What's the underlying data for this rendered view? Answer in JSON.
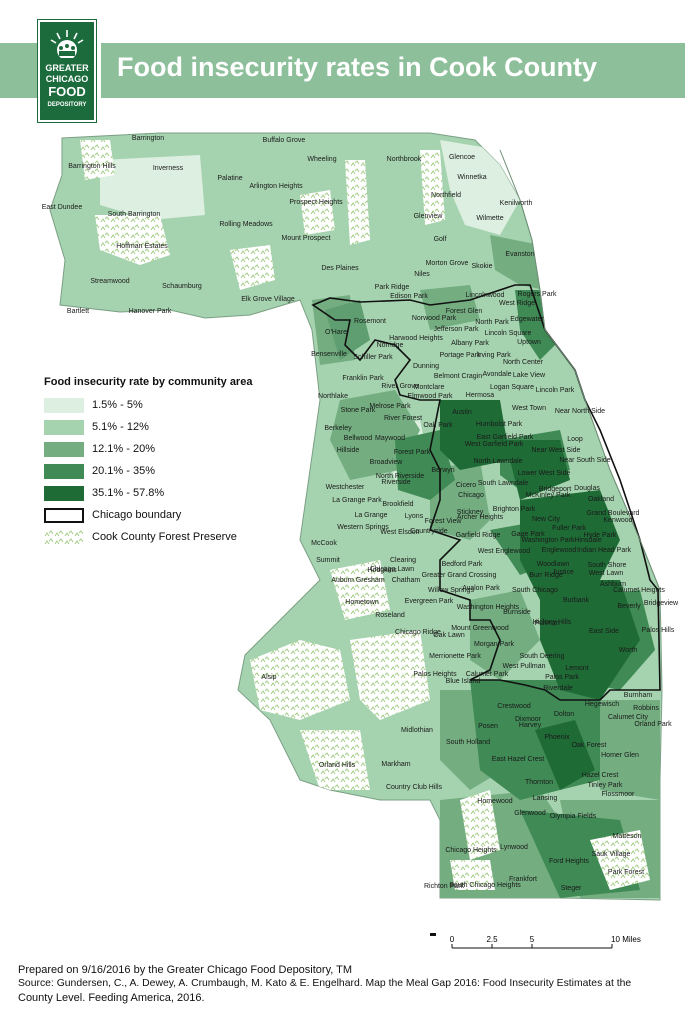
{
  "title": "Food insecurity rates in Cook County",
  "logo": {
    "line1": "GREATER",
    "line2": "CHICAGO",
    "line3": "FOOD",
    "line4": "DEPOSITORY",
    "icon": "sun-figures-logo-icon"
  },
  "legend": {
    "title": "Food insecurity rate by community area",
    "classes": [
      {
        "label": "1.5% - 5%",
        "color": "#dcefe0"
      },
      {
        "label": "5.1% - 12%",
        "color": "#a6d3af"
      },
      {
        "label": "12.1% - 20%",
        "color": "#73ad80"
      },
      {
        "label": "20.1% - 35%",
        "color": "#3f8a55"
      },
      {
        "label": "35.1% - 57.8%",
        "color": "#1f6b36"
      }
    ],
    "boundary_label": "Chicago boundary",
    "forest_label": "Cook County Forest Preserve"
  },
  "places": [
    "Barrington",
    "Buffalo Grove",
    "Wheeling",
    "Northbrook",
    "Glencoe",
    "Winnetka",
    "Barrington Hills",
    "Inverness",
    "Palatine",
    "Arlington Heights",
    "Prospect Heights",
    "Northfield",
    "Kenilworth",
    "Wilmette",
    "East Dundee",
    "South Barrington",
    "Rolling Meadows",
    "Glenview",
    "Golf",
    "Mount Prospect",
    "Hoffman Estates",
    "Morton Grove",
    "Skokie",
    "Evanston",
    "Des Plaines",
    "Niles",
    "Streamwood",
    "Schaumburg",
    "Park Ridge",
    "Lincolnwood",
    "Rogers Park",
    "West Ridge",
    "Bartlett",
    "Hanover Park",
    "Elk Grove Village",
    "Edison Park",
    "Forest Glen",
    "Norwood Park",
    "North Park",
    "Edgewater",
    "O'Hare",
    "Rosemont",
    "Jefferson Park",
    "Lincoln Square",
    "Harwood Heights",
    "Norridge",
    "Albany Park",
    "Uptown",
    "Bensenville",
    "Schiller Park",
    "Portage Park",
    "Irving Park",
    "North Center",
    "Dunning",
    "Franklin Park",
    "Belmont Cragin",
    "Avondale",
    "Lake View",
    "Montclare",
    "Logan Square",
    "Lincoln Park",
    "River Grove",
    "Northlake",
    "Elmwood Park",
    "Hermosa",
    "Stone Park",
    "Melrose Park",
    "West Town",
    "Near North Side",
    "River Forest",
    "Oak Park",
    "Austin",
    "Berkeley",
    "Humboldt Park",
    "Bellwood",
    "Maywood",
    "East Garfield Park",
    "West Garfield Park",
    "Near West Side",
    "Loop",
    "Hillside",
    "Forest Park",
    "Broadview",
    "Berwyn",
    "North Lawndale",
    "Lower West Side",
    "Near South Side",
    "Westchester",
    "North Riverside",
    "Riverside",
    "Cicero",
    "South Lawndale",
    "Bridgeport",
    "Douglas",
    "La Grange Park",
    "Brookfield",
    "Chicago",
    "McKinley Park",
    "Oakland",
    "Brighton Park",
    "Grand Boulevard",
    "Kenwood",
    "La Grange",
    "Lyons",
    "Stickney",
    "Forest View",
    "Archer Heights",
    "New City",
    "Fuller Park",
    "Hyde Park",
    "Western Springs",
    "Garfield Ridge",
    "Gage Park",
    "Washington Park",
    "Hinsdale",
    "McCook",
    "West Elsdon",
    "West Englewood",
    "Englewood",
    "Woodlawn",
    "Indian Head Park",
    "Summit",
    "Countryside",
    "Clearing",
    "Chicago Lawn",
    "South Shore",
    "Hodgkins",
    "Bedford Park",
    "West Lawn",
    "Greater Grand Crossing",
    "Burr Ridge",
    "Justice",
    "Ashburn",
    "Auburn Gresham",
    "Chatham",
    "Avalon Park",
    "South Chicago",
    "Burbank",
    "Calumet Heights",
    "Willow Springs",
    "Bridgeview",
    "Hometown",
    "Evergreen Park",
    "Washington Heights",
    "Burnside",
    "Hickory Hills",
    "Beverly",
    "Roseland",
    "Pullman",
    "East Side",
    "Palos Hills",
    "Chicago Ridge",
    "Oak Lawn",
    "Mount Greenwood",
    "Morgan Park",
    "South Deering",
    "Worth",
    "Merrionette Park",
    "West Pullman",
    "Lemont",
    "Alsip",
    "Calumet Park",
    "Palos Park",
    "Palos Heights",
    "Blue Island",
    "Riverdale",
    "Hegewisch",
    "Burnham",
    "Robbins",
    "Crestwood",
    "Posen",
    "Dixmoor",
    "Dolton",
    "Calumet City",
    "Orland Park",
    "Midlothian",
    "Harvey",
    "Phoenix",
    "Oak Forest",
    "South Holland",
    "Homer Glen",
    "Orland Hills",
    "Markham",
    "East Hazel Crest",
    "Hazel Crest",
    "Thornton",
    "Tinley Park",
    "Country Club Hills",
    "Homewood",
    "Lansing",
    "Flossmoor",
    "Glenwood",
    "Olympia Fields",
    "Lynwood",
    "Matteson",
    "Chicago Heights",
    "Ford Heights",
    "Sauk Village",
    "Park Forest",
    "Frankfort",
    "Richton Park",
    "South Chicago Heights",
    "Steger"
  ],
  "scale": {
    "ticks": [
      "0",
      "2.5",
      "5",
      "10 Miles"
    ]
  },
  "footer": {
    "line1": "Prepared on 9/16/2016 by the Greater Chicago Food Depository, TM",
    "line2": "Source: Gundersen, C., A. Dewey, A. Crumbaugh, M. Kato & E. Engelhard. Map the Meal Gap 2016: Food Insecurity Estimates at the",
    "line3": "County Level. Feeding America, 2016."
  }
}
